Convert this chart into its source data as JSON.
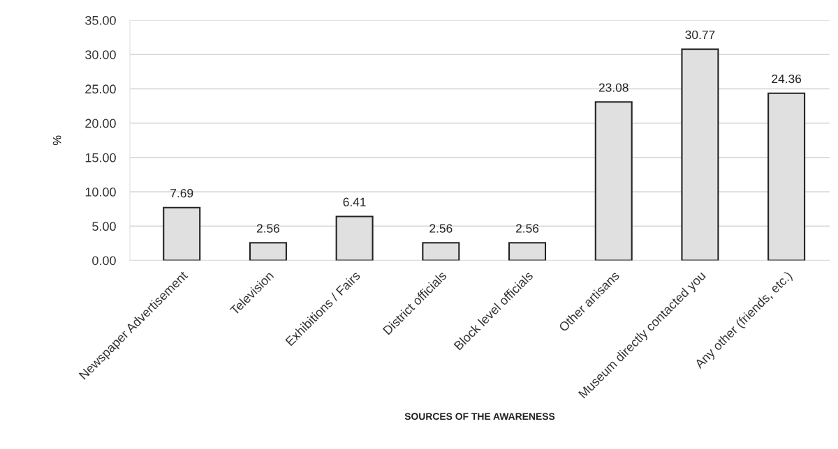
{
  "chart_data": {
    "type": "bar",
    "xlabel": "SOURCES OF THE AWARENESS",
    "ylabel": "%",
    "categories": [
      "Newspaper Advertisement",
      "Television",
      "Exhibitions / Fairs",
      "District officials",
      "Block level officials",
      "Other artisans",
      "Museum directly contacted you",
      "Any other (friends, etc.)"
    ],
    "values": [
      7.69,
      2.56,
      6.41,
      2.56,
      2.56,
      23.08,
      30.77,
      24.36
    ],
    "color": "#e0e0e0",
    "data_labels": true,
    "ylim": [
      0,
      35
    ],
    "yticks": [
      {
        "value": 0,
        "label": "0.00"
      },
      {
        "value": 5,
        "label": "5.00"
      },
      {
        "value": 10,
        "label": "10.00"
      },
      {
        "value": 15,
        "label": "15.00"
      },
      {
        "value": 20,
        "label": "20.00"
      },
      {
        "value": 25,
        "label": "25.00"
      },
      {
        "value": 30,
        "label": "30.00"
      },
      {
        "value": 35,
        "label": "35.00"
      }
    ],
    "grid": "y"
  }
}
